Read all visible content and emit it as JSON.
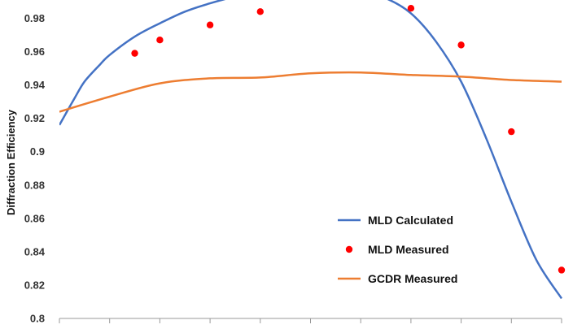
{
  "chart_data": {
    "type": "line",
    "ylabel": "Diffraction Efficiency",
    "ylim": [
      0.8,
      0.99
    ],
    "yticks": [
      "0.8",
      "0.82",
      "0.84",
      "0.86",
      "0.88",
      "0.9",
      "0.92",
      "0.94",
      "0.96",
      "0.98"
    ],
    "xlim": [
      0,
      10
    ],
    "x_tick_count": 11,
    "grid": false,
    "legend_position": "lower-right",
    "series": [
      {
        "name": "MLD Calculated",
        "style": "line",
        "color": "#4472C4",
        "x": [
          0,
          0.3,
          0.5,
          0.8,
          1,
          1.5,
          2,
          2.5,
          3,
          3.5,
          4,
          5,
          6,
          6.5,
          7,
          7.5,
          8,
          8.5,
          9,
          9.5,
          10
        ],
        "values": [
          0.916,
          0.932,
          0.942,
          0.952,
          0.958,
          0.969,
          0.977,
          0.984,
          0.989,
          0.993,
          0.996,
          0.998,
          0.996,
          0.992,
          0.983,
          0.966,
          0.942,
          0.908,
          0.87,
          0.835,
          0.812
        ]
      },
      {
        "name": "MLD Measured",
        "style": "markers",
        "color": "#FF0000",
        "x": [
          1.5,
          2,
          3,
          4,
          7,
          8,
          9,
          10
        ],
        "values": [
          0.959,
          0.967,
          0.976,
          0.984,
          0.986,
          0.964,
          0.912,
          0.829
        ]
      },
      {
        "name": "GCDR Measured",
        "style": "line",
        "color": "#ED7D31",
        "x": [
          0,
          1,
          2,
          3,
          4,
          5,
          6,
          7,
          8,
          9,
          10
        ],
        "values": [
          0.924,
          0.933,
          0.941,
          0.944,
          0.9445,
          0.947,
          0.9475,
          0.946,
          0.945,
          0.943,
          0.942
        ]
      }
    ]
  }
}
